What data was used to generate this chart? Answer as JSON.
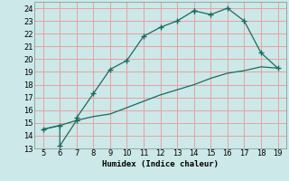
{
  "x_main": [
    5,
    6,
    6,
    7,
    7,
    8,
    9,
    10,
    11,
    12,
    13,
    14,
    14,
    15,
    16,
    17,
    18,
    19
  ],
  "y_main": [
    14.5,
    14.8,
    13.2,
    15.2,
    15.4,
    17.3,
    19.2,
    19.9,
    21.8,
    22.5,
    23.0,
    23.8,
    23.8,
    23.5,
    24.0,
    23.0,
    20.5,
    19.3
  ],
  "x_line": [
    5,
    6,
    7,
    8,
    9,
    10,
    11,
    12,
    13,
    14,
    15,
    16,
    17,
    18,
    19
  ],
  "y_line": [
    14.5,
    14.8,
    15.2,
    15.5,
    15.7,
    16.2,
    16.7,
    17.2,
    17.6,
    18.0,
    18.5,
    18.9,
    19.1,
    19.4,
    19.3
  ],
  "line_color": "#1a6b5e",
  "bg_color": "#cce8e8",
  "grid_major_color": "#f5b8b8",
  "grid_minor_color": "#c8dede",
  "xlabel": "Humidex (Indice chaleur)",
  "xlim": [
    4.5,
    19.5
  ],
  "ylim": [
    13,
    24.5
  ],
  "xticks": [
    5,
    6,
    7,
    8,
    9,
    10,
    11,
    12,
    13,
    14,
    15,
    16,
    17,
    18,
    19
  ],
  "yticks": [
    13,
    14,
    15,
    16,
    17,
    18,
    19,
    20,
    21,
    22,
    23,
    24
  ]
}
